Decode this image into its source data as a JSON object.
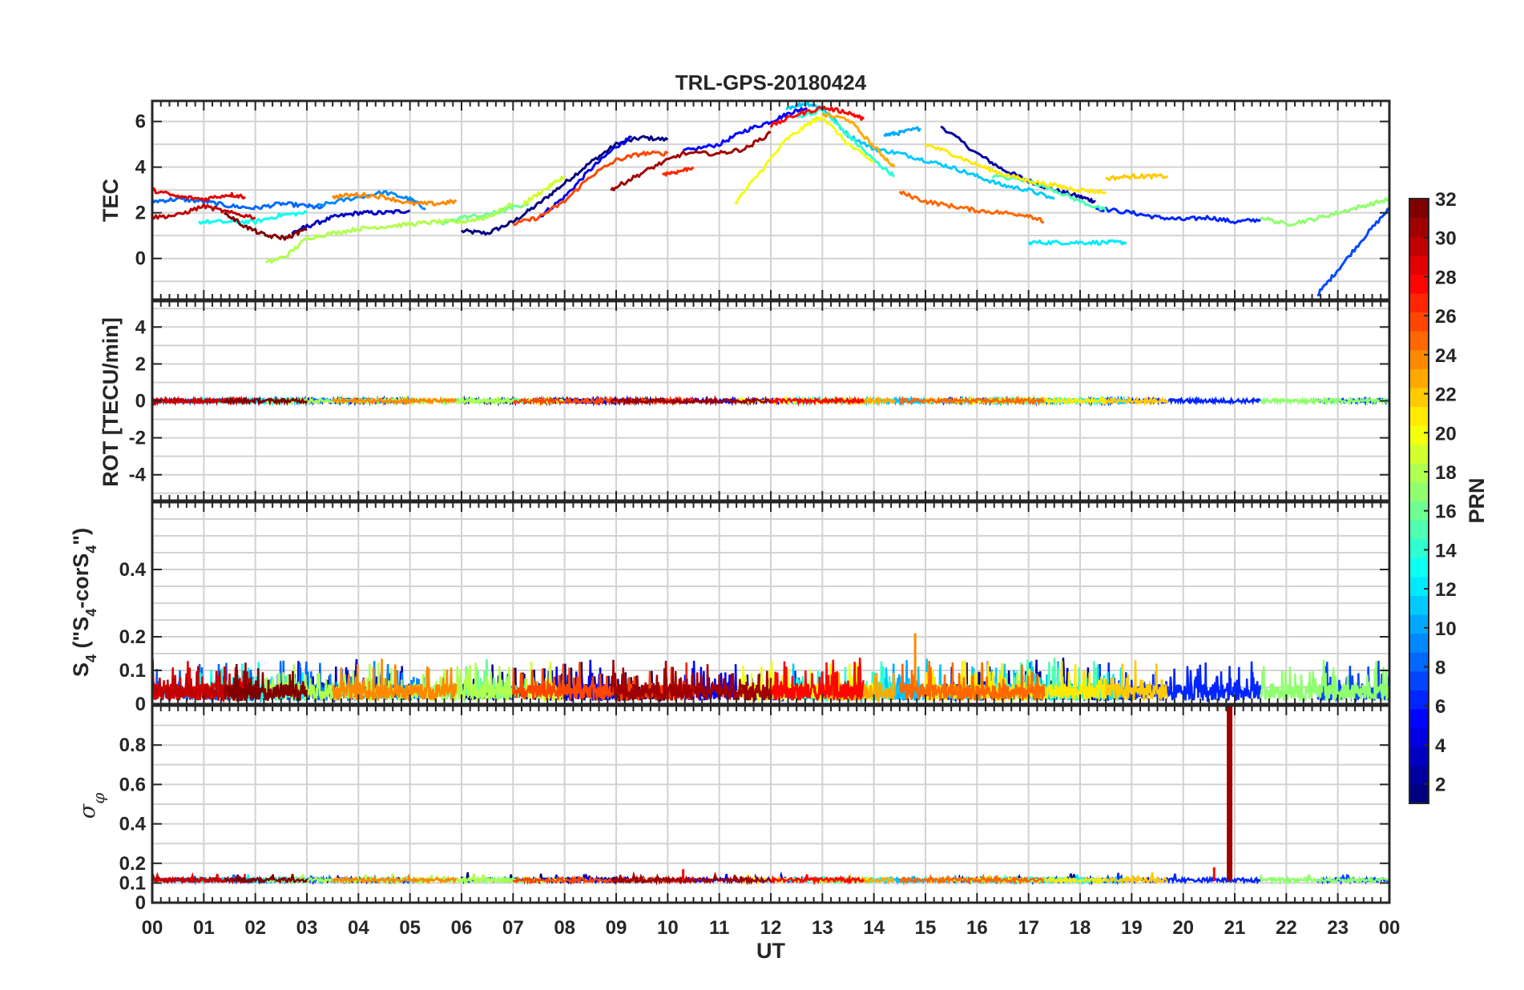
{
  "chart_data": {
    "type": "line",
    "title": "TRL-GPS-20180424",
    "xlabel": "UT",
    "x_ticks": [
      "00",
      "01",
      "02",
      "03",
      "04",
      "05",
      "06",
      "07",
      "08",
      "09",
      "10",
      "11",
      "12",
      "13",
      "14",
      "15",
      "16",
      "17",
      "18",
      "19",
      "20",
      "21",
      "22",
      "23",
      "00"
    ],
    "xlim": [
      0,
      24
    ],
    "grid": true,
    "colorbar": {
      "label": "PRN",
      "range": [
        1,
        32
      ],
      "ticks": [
        "2",
        "4",
        "6",
        "8",
        "10",
        "12",
        "14",
        "16",
        "18",
        "20",
        "22",
        "24",
        "26",
        "28",
        "30",
        "32"
      ],
      "colormap": "jet"
    },
    "panels": [
      {
        "name": "tec",
        "ylabel": "TEC",
        "ylim": [
          -1.8,
          6.9
        ],
        "yticks": [
          "0",
          "2",
          "4",
          "6"
        ],
        "series": [
          {
            "prn": 1,
            "x": [
              6.0,
              6.5,
              7.0,
              7.5,
              8.0,
              8.5,
              9.0,
              9.5,
              10.0
            ],
            "y": [
              1.2,
              1.1,
              1.6,
              2.4,
              3.3,
              4.2,
              5.0,
              5.3,
              5.2
            ]
          },
          {
            "prn": 2,
            "x": [
              15.3,
              16.0,
              16.5,
              17.0,
              17.5,
              18.0,
              18.3
            ],
            "y": [
              5.8,
              4.6,
              3.9,
              3.4,
              3.0,
              2.7,
              2.5
            ]
          },
          {
            "prn": 3,
            "x": [
              2.7,
              3.0,
              3.5,
              4.0,
              4.5,
              5.0
            ],
            "y": [
              1.1,
              1.4,
              1.8,
              2.0,
              2.0,
              2.1
            ]
          },
          {
            "prn": 4,
            "x": [
              7.5,
              8.0,
              8.5,
              9.0,
              9.3
            ],
            "y": [
              1.8,
              2.7,
              3.9,
              4.9,
              5.3
            ]
          },
          {
            "prn": 5,
            "x": [
              10.3,
              11.0,
              11.5,
              12.0,
              12.4,
              12.7
            ],
            "y": [
              4.7,
              5.0,
              5.6,
              6.0,
              6.4,
              6.6
            ]
          },
          {
            "prn": 6,
            "x": [
              18.3,
              19.0,
              19.5,
              20.0,
              20.5,
              21.0,
              21.5
            ],
            "y": [
              2.2,
              2.0,
              1.8,
              1.7,
              1.8,
              1.6,
              1.7
            ]
          },
          {
            "prn": 7,
            "x": [
              22.6,
              23.0,
              23.5,
              24.0
            ],
            "y": [
              -1.6,
              -0.5,
              0.9,
              2.2
            ]
          },
          {
            "prn": 8,
            "x": [
              0.0,
              0.5,
              1.0,
              1.5,
              2.0,
              2.5,
              3.0,
              3.3
            ],
            "y": [
              2.5,
              2.6,
              2.5,
              2.3,
              2.2,
              2.4,
              2.3,
              2.2
            ]
          },
          {
            "prn": 9,
            "x": [
              3.2,
              3.8,
              4.5,
              5.0,
              5.3
            ],
            "y": [
              2.3,
              2.6,
              2.9,
              2.6,
              2.2
            ]
          },
          {
            "prn": 10,
            "x": [
              14.2,
              14.5,
              14.9
            ],
            "y": [
              5.4,
              5.5,
              5.7
            ]
          },
          {
            "prn": 11,
            "x": [
              12.3,
              12.7,
              13.0,
              13.5,
              14.0,
              14.5,
              15.0,
              15.5,
              16.0,
              16.5,
              17.0,
              17.5
            ],
            "y": [
              6.6,
              6.8,
              6.6,
              5.4,
              4.8,
              4.6,
              4.3,
              4.0,
              3.6,
              3.2,
              3.0,
              2.6
            ]
          },
          {
            "prn": 12,
            "x": [
              17.0,
              17.5,
              18.0,
              18.5,
              18.9
            ],
            "y": [
              0.7,
              0.7,
              0.7,
              0.7,
              0.7
            ]
          },
          {
            "prn": 13,
            "x": [
              0.9,
              1.5,
              2.0,
              2.5,
              3.0
            ],
            "y": [
              1.6,
              1.6,
              1.6,
              1.9,
              2.0
            ]
          },
          {
            "prn": 14,
            "x": [
              12.5,
              13.0,
              13.5,
              14.0,
              14.4
            ],
            "y": [
              6.2,
              6.5,
              5.4,
              4.3,
              3.6
            ]
          },
          {
            "prn": 15,
            "x": [
              16.3,
              17.0,
              17.5,
              18.0,
              18.5
            ],
            "y": [
              3.6,
              3.4,
              3.0,
              2.5,
              2.1
            ]
          },
          {
            "prn": 16,
            "x": [
              5.6,
              6.0,
              6.5,
              6.8,
              7.3
            ],
            "y": [
              1.5,
              1.8,
              1.9,
              2.1,
              2.4
            ]
          },
          {
            "prn": 17,
            "x": [
              21.5,
              22.0,
              22.5,
              23.0,
              23.5,
              24.0
            ],
            "y": [
              1.8,
              1.5,
              1.7,
              2.0,
              2.3,
              2.6
            ]
          },
          {
            "prn": 18,
            "x": [
              2.2,
              2.6,
              3.0,
              3.5,
              4.0,
              4.5,
              5.0,
              5.5,
              6.0,
              6.5,
              7.0
            ],
            "y": [
              -0.2,
              0.1,
              0.9,
              1.1,
              1.3,
              1.4,
              1.5,
              1.6,
              1.6,
              1.8,
              2.4
            ]
          },
          {
            "prn": 19,
            "x": [
              7.2,
              7.6,
              8.0
            ],
            "y": [
              2.4,
              3.0,
              3.6
            ]
          },
          {
            "prn": 20,
            "x": [
              11.3,
              11.8,
              12.3,
              12.8,
              13.0,
              13.5,
              14.0
            ],
            "y": [
              2.4,
              3.8,
              5.2,
              6.0,
              6.2,
              5.0,
              4.2
            ]
          },
          {
            "prn": 21,
            "x": [
              15.0,
              15.5,
              16.0,
              16.5,
              17.0,
              17.5,
              18.0,
              18.5
            ],
            "y": [
              5.0,
              4.6,
              4.1,
              3.7,
              3.4,
              3.2,
              3.0,
              2.9
            ]
          },
          {
            "prn": 22,
            "x": [
              18.5,
              19.0,
              19.3,
              19.7
            ],
            "y": [
              3.5,
              3.6,
              3.6,
              3.6
            ]
          },
          {
            "prn": 23,
            "x": [
              13.0,
              13.5,
              14.0,
              14.4
            ],
            "y": [
              6.3,
              6.1,
              4.9,
              4.0
            ]
          },
          {
            "prn": 24,
            "x": [
              3.5,
              4.0,
              4.5,
              5.0,
              5.5,
              5.9
            ],
            "y": [
              2.7,
              2.8,
              2.7,
              2.4,
              2.4,
              2.5
            ]
          },
          {
            "prn": 25,
            "x": [
              14.5,
              15.0,
              15.5,
              16.0,
              16.5,
              17.0,
              17.3
            ],
            "y": [
              2.9,
              2.5,
              2.3,
              2.1,
              2.0,
              1.9,
              1.6
            ]
          },
          {
            "prn": 26,
            "x": [
              7.0,
              7.5,
              8.0,
              8.5,
              9.0,
              9.5,
              10.0
            ],
            "y": [
              1.5,
              1.8,
              2.5,
              3.6,
              4.3,
              4.6,
              4.6
            ]
          },
          {
            "prn": 27,
            "x": [
              9.9,
              10.2,
              10.5
            ],
            "y": [
              3.7,
              3.8,
              4.0
            ]
          },
          {
            "prn": 28,
            "x": [
              12.0,
              12.5,
              13.0,
              13.5,
              13.8
            ],
            "y": [
              5.8,
              6.3,
              6.6,
              6.4,
              6.1
            ]
          },
          {
            "prn": 29,
            "x": [
              0.0,
              0.5,
              1.0,
              1.5,
              1.8
            ],
            "y": [
              3.0,
              2.7,
              2.6,
              2.8,
              2.7
            ]
          },
          {
            "prn": 30,
            "x": [
              0.0,
              0.5,
              1.0,
              1.5,
              2.0
            ],
            "y": [
              1.8,
              1.9,
              2.3,
              2.0,
              1.8
            ]
          },
          {
            "prn": 31,
            "x": [
              8.9,
              9.3,
              9.8,
              10.3,
              11.0,
              11.5,
              12.0
            ],
            "y": [
              3.0,
              3.5,
              4.1,
              4.6,
              4.6,
              4.8,
              5.5
            ]
          },
          {
            "prn": 32,
            "x": [
              1.4,
              1.8,
              2.2,
              2.6,
              3.0
            ],
            "y": [
              2.0,
              1.4,
              1.0,
              0.9,
              1.3
            ]
          }
        ]
      },
      {
        "name": "rot",
        "ylabel": "ROT [TECU/min]",
        "ylim": [
          -5.4,
          5.4
        ],
        "yticks": [
          "-4",
          "-2",
          "0",
          "2",
          "4"
        ],
        "description": "all PRN traces stay within about ±0.2 TECU/min around 0"
      },
      {
        "name": "s4",
        "ylabel": "S4 (\"S4-corS4\")",
        "ylabel_main": "S",
        "ylabel_sub": "4",
        "ylabel_mid": " (\"S",
        "ylabel_mid2": "-corS",
        "ylabel_end": "\")",
        "ylim": [
          0,
          0.6
        ],
        "yticks": [
          "0",
          "0.1",
          "0.2",
          "0.4"
        ],
        "description": "noisy traces between 0 and about 0.15, peak near 0.21 at ~14.8 UT"
      },
      {
        "name": "sigma_phi",
        "ylabel": "σφ",
        "ylabel_main": "σ",
        "ylabel_sub": "φ",
        "ylim": [
          0,
          1.0
        ],
        "yticks": [
          "0",
          "0.1",
          "0.2",
          "0.4",
          "0.6",
          "0.8"
        ],
        "description": "baseline near 0.11 for all PRNs; PRN 31 spike to 1.0 at ~20.9 UT",
        "spike": {
          "prn": 31,
          "x": 20.9,
          "y": 1.0
        }
      }
    ]
  }
}
